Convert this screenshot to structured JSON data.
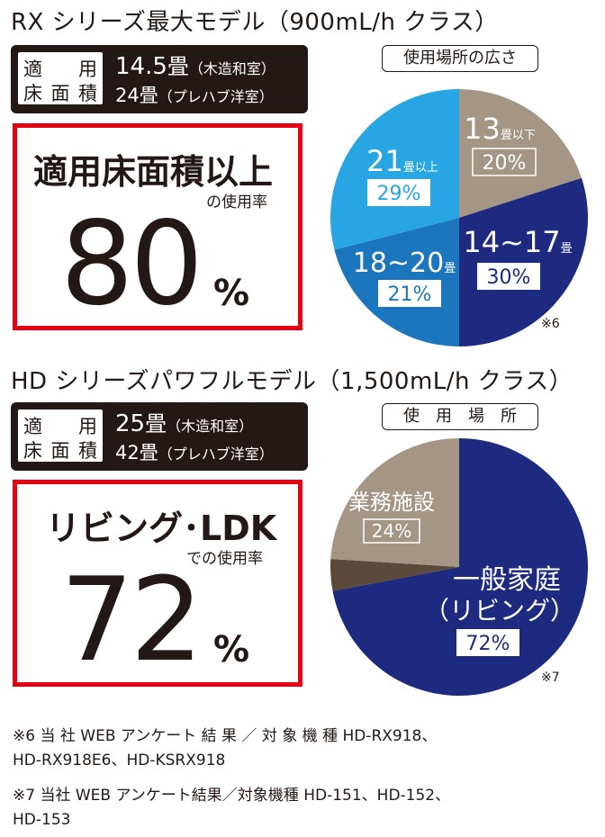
{
  "section1": {
    "title": "RX シリーズ最大モデル（900mL/h クラス）",
    "spec": {
      "label_line1": "適　用",
      "label_line2": "床面積",
      "value1_num": "14.5",
      "value1_unit": "畳",
      "value1_note": "（木造和室）",
      "value2_num": "24",
      "value2_unit": "畳",
      "value2_note": "（プレハブ洋室）"
    },
    "highlight": {
      "heading": "適用床面積以上",
      "subheading": "の使用率",
      "number": "80",
      "percent_sign": "%"
    },
    "chart_title": "使用場所の広さ",
    "footnote_mark": "※6"
  },
  "section2": {
    "title": "HD シリーズパワフルモデル（1,500mL/h クラス）",
    "spec": {
      "label_line1": "適　用",
      "label_line2": "床面積",
      "value1_num": "25",
      "value1_unit": "畳",
      "value1_note": "（木造和室）",
      "value2_num": "42",
      "value2_unit": "畳",
      "value2_note": "（プレハブ洋室）"
    },
    "highlight": {
      "heading": "リビング･LDK",
      "subheading": "での使用率",
      "number": "72",
      "percent_sign": "%"
    },
    "chart_title": "使　用　場　所",
    "footnote_mark": "※7"
  },
  "notes": {
    "note6_line1": "※6 当 社 WEB アンケート 結 果 ／ 対 象 機 種 HD-RX918、",
    "note6_line2": "HD-RX918E6、HD-KSRX918",
    "note7_line1": "※7 当社 WEB アンケート結果／対象機種 HD-151、HD-152、",
    "note7_line2": "HD-153"
  },
  "colors": {
    "navy": "#1d2a7f",
    "mid_blue": "#1b76bd",
    "light_blue": "#27a6e3",
    "taupe": "#a49585",
    "dark_brown": "#5b4a3c",
    "red": "#e50012",
    "dark": "#231815"
  },
  "chart_data": [
    {
      "type": "pie",
      "title": "使用場所の広さ",
      "slices": [
        {
          "label_num": "13",
          "label_unit": "畳以下",
          "value": 20,
          "value_label": "20%",
          "color": "#a49585"
        },
        {
          "label_num": "14~17",
          "label_unit": "畳",
          "value": 30,
          "value_label": "30%",
          "color": "#1d2a7f"
        },
        {
          "label_num": "18~20",
          "label_unit": "畳",
          "value": 21,
          "value_label": "21%",
          "color": "#1b76bd"
        },
        {
          "label_num": "21",
          "label_unit": "畳以上",
          "value": 29,
          "value_label": "29%",
          "color": "#27a6e3"
        }
      ]
    },
    {
      "type": "pie",
      "title": "使　用　場　所",
      "slices": [
        {
          "label_line1": "一般家庭",
          "label_line2": "（リビング）",
          "value": 72,
          "value_label": "72%",
          "color": "#1d2a7f"
        },
        {
          "label_line1": "",
          "value": 4,
          "value_label": "",
          "color": "#5b4a3c"
        },
        {
          "label_line1": "業務施設",
          "value": 24,
          "value_label": "24%",
          "color": "#a49585"
        }
      ]
    }
  ]
}
